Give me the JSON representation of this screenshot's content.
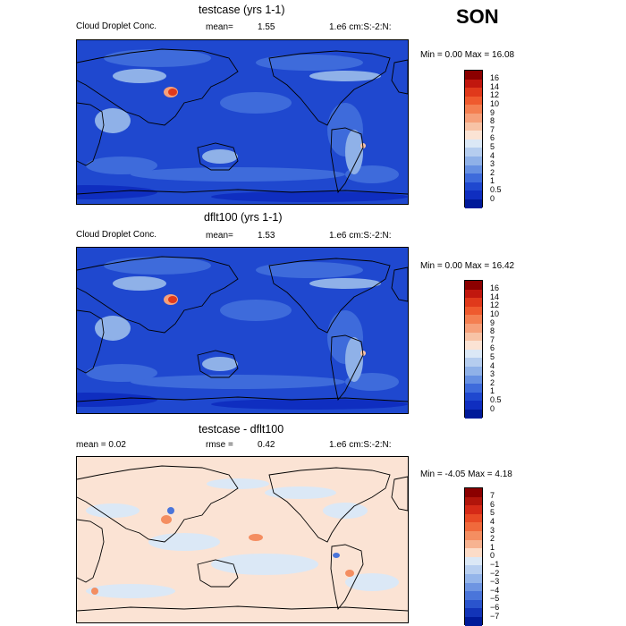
{
  "season": "SON",
  "panels": [
    {
      "title": "testcase (yrs 1-1)",
      "left_label": "Cloud Droplet Conc.",
      "stat_label": "mean=",
      "stat_value": "1.55",
      "units": "1.e6 cm:S:-2:N:",
      "range_text": "Min =    0.00 Max =   16.08",
      "levels": [
        "16",
        "14",
        "12",
        "10",
        "9",
        "8",
        "7",
        "6",
        "5",
        "4",
        "3",
        "2",
        "1",
        "0.5",
        "0"
      ],
      "colors": [
        "#8b0000",
        "#c1170e",
        "#e0391b",
        "#ef5a2e",
        "#f47f51",
        "#f6a07a",
        "#f7c3a6",
        "#fbe3d4",
        "#dbe8f6",
        "#b5cdef",
        "#8fb1e8",
        "#6690e2",
        "#3e6bdb",
        "#1f48cf",
        "#0f2ec0",
        "#001a99"
      ],
      "highlight": "high"
    },
    {
      "title": "dflt100 (yrs 1-1)",
      "left_label": "Cloud Droplet Conc.",
      "stat_label": "mean=",
      "stat_value": "1.53",
      "units": "1.e6 cm:S:-2:N:",
      "range_text": "Min =    0.00 Max =   16.42",
      "levels": [
        "16",
        "14",
        "12",
        "10",
        "9",
        "8",
        "7",
        "6",
        "5",
        "4",
        "3",
        "2",
        "1",
        "0.5",
        "0"
      ],
      "colors": [
        "#8b0000",
        "#c1170e",
        "#e0391b",
        "#ef5a2e",
        "#f47f51",
        "#f6a07a",
        "#f7c3a6",
        "#fbe3d4",
        "#dbe8f6",
        "#b5cdef",
        "#8fb1e8",
        "#6690e2",
        "#3e6bdb",
        "#1f48cf",
        "#0f2ec0",
        "#001a99"
      ],
      "highlight": "high"
    },
    {
      "title": "testcase - dflt100",
      "left_label": "mean =    0.02",
      "stat_label": "rmse =",
      "stat_value": "0.42",
      "units": "1.e6 cm:S:-2:N:",
      "range_text": "Min =  -4.05 Max =    4.18",
      "levels": [
        "7",
        "6",
        "5",
        "4",
        "3",
        "2",
        "1",
        "0",
        "−1",
        "−2",
        "−3",
        "−4",
        "−5",
        "−6",
        "−7"
      ],
      "colors": [
        "#8b0000",
        "#b1150b",
        "#d52a17",
        "#e84a25",
        "#f06a3c",
        "#f48e61",
        "#f7b391",
        "#fcdcc8",
        "#dbe8f6",
        "#b8cff0",
        "#94b5ea",
        "#6e95e2",
        "#4a75da",
        "#2a54cd",
        "#1234b8",
        "#001a99"
      ],
      "highlight": "diff"
    }
  ]
}
